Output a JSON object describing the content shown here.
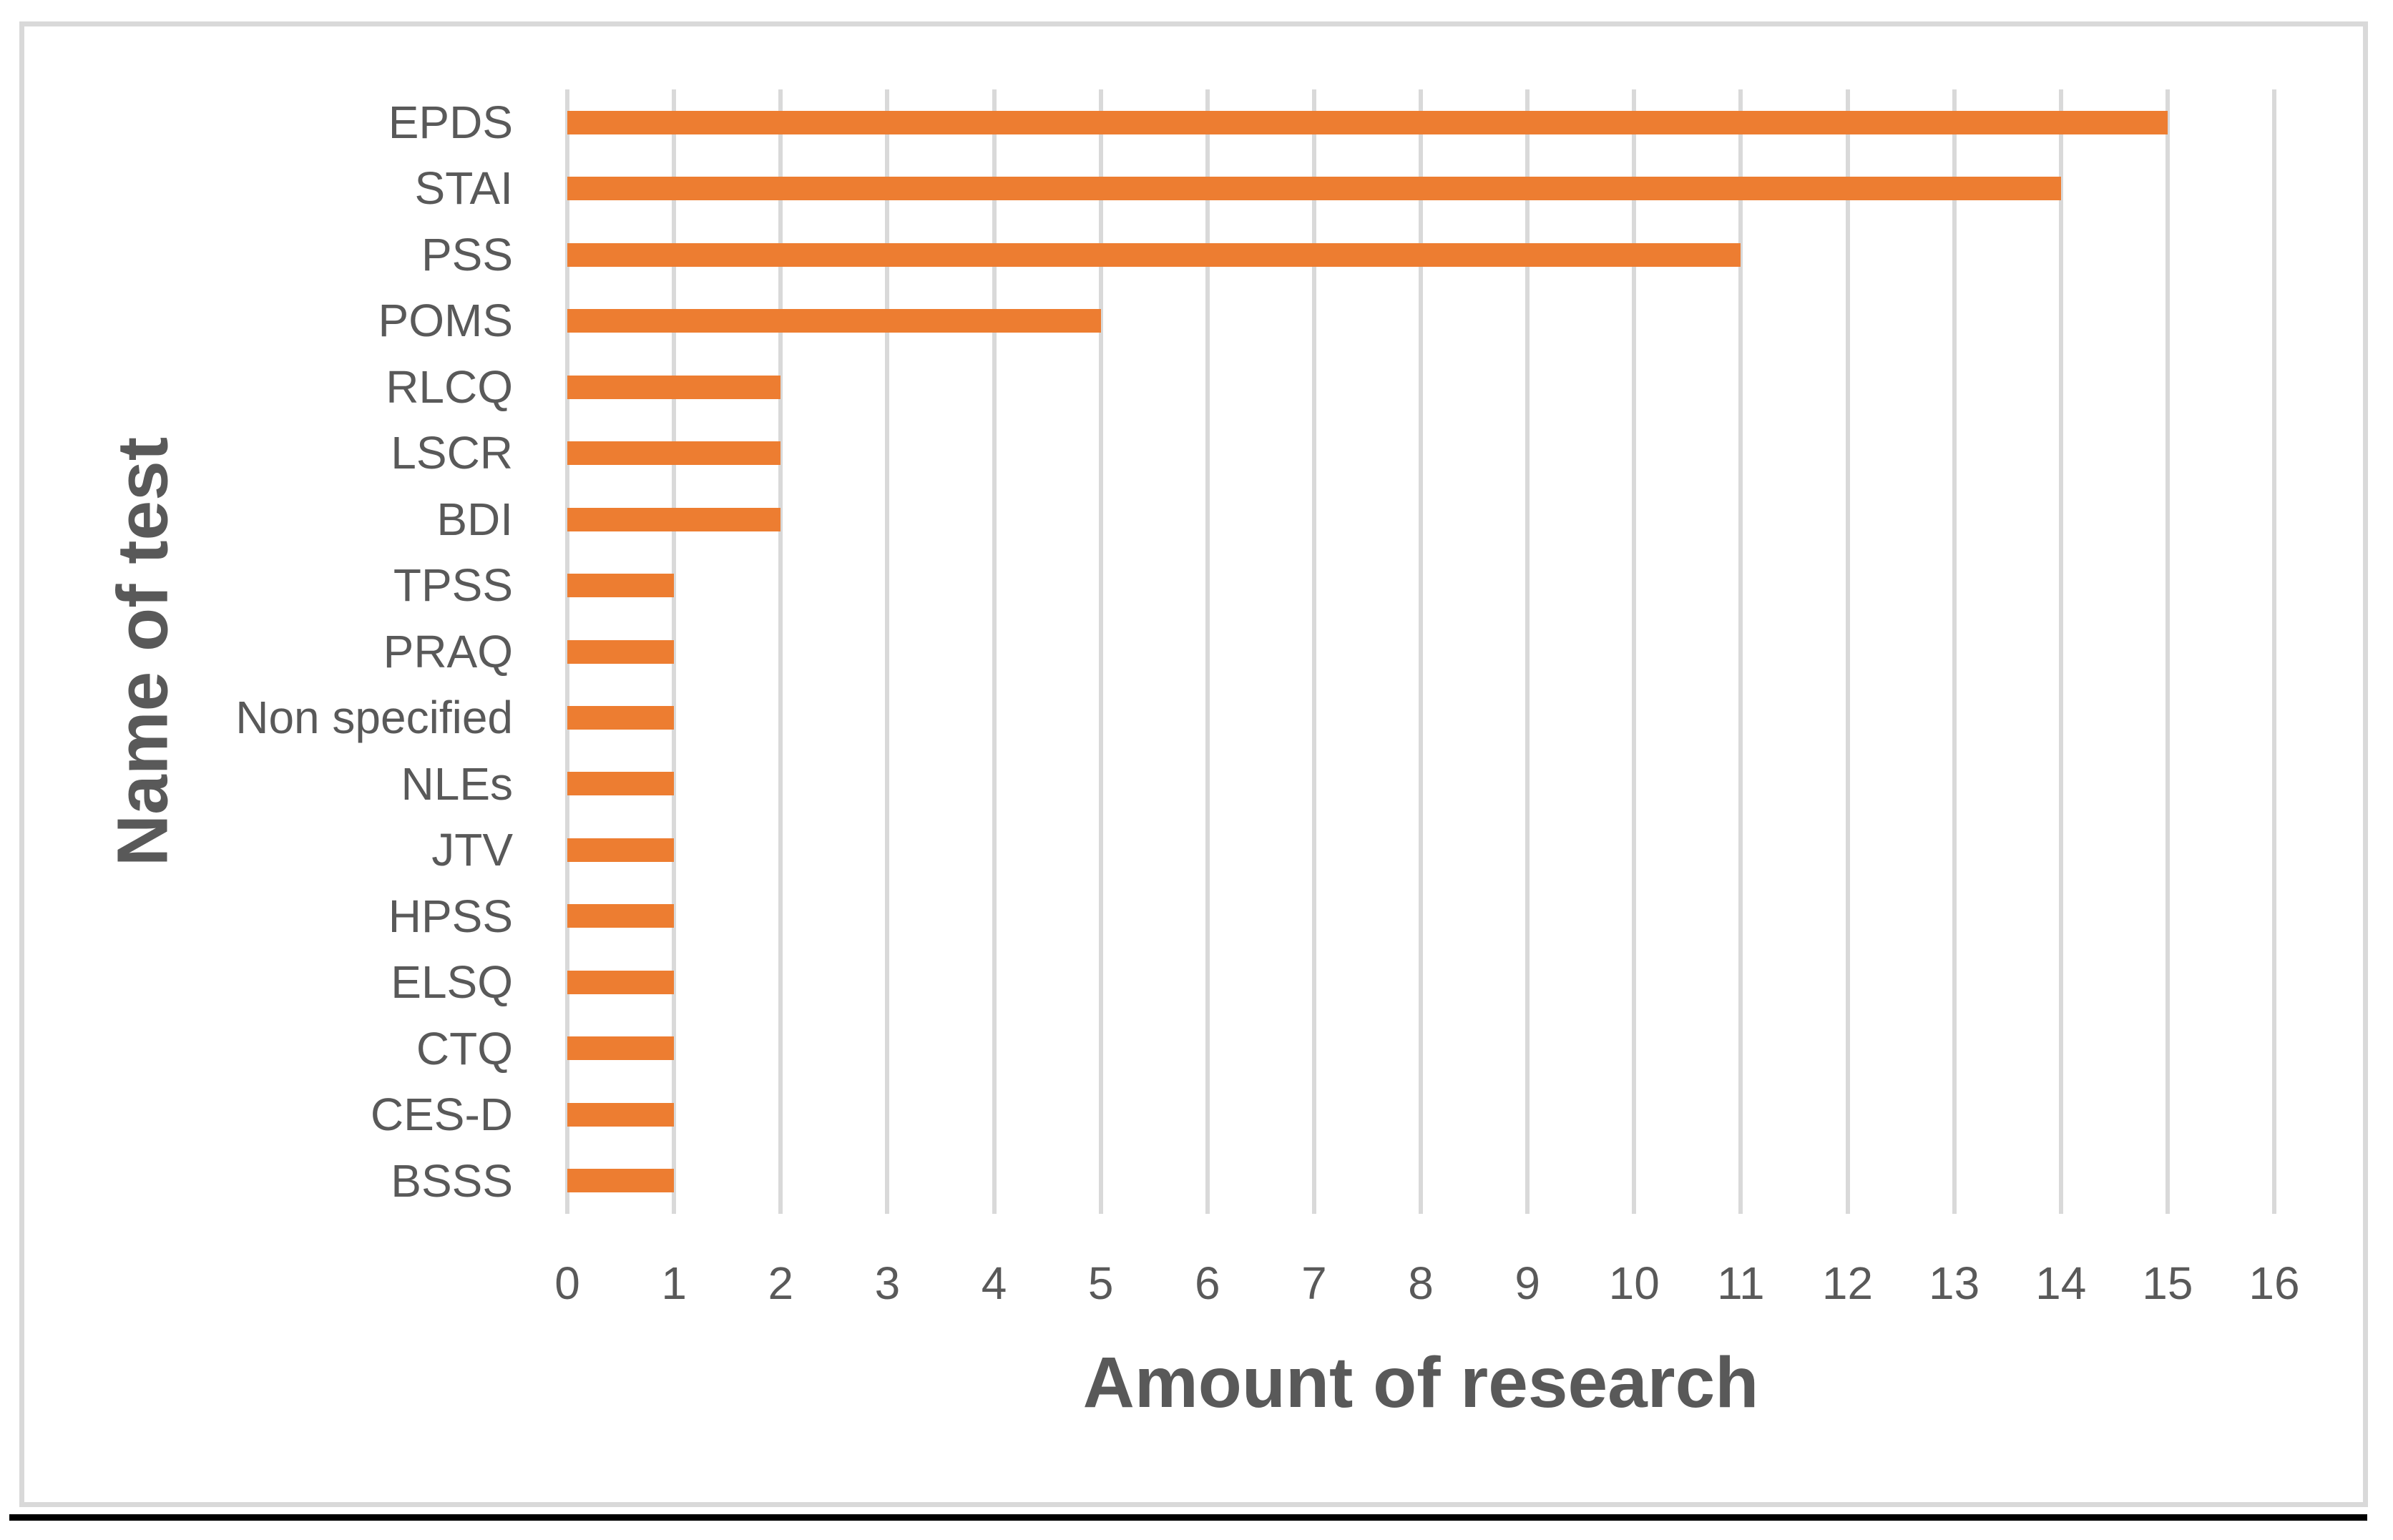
{
  "figure": {
    "background": "#ffffff",
    "frame_border_color": "#d9d9d9",
    "bottom_rule_color": "#000000"
  },
  "chart_data": {
    "type": "bar",
    "orientation": "horizontal",
    "title": "",
    "xlabel": "Amount of research",
    "ylabel": "Name of test",
    "categories": [
      "EPDS",
      "STAI",
      "PSS",
      "POMS",
      "RLCQ",
      "LSCR",
      "BDI",
      "TPSS",
      "PRAQ",
      "Non specified",
      "NLEs",
      "JTV",
      "HPSS",
      "ELSQ",
      "CTQ",
      "CES-D",
      "BSSS"
    ],
    "values": [
      15,
      14,
      11,
      5,
      2,
      2,
      2,
      1,
      1,
      1,
      1,
      1,
      1,
      1,
      1,
      1,
      1
    ],
    "xlim": [
      0,
      16
    ],
    "xticks": [
      0,
      1,
      2,
      3,
      4,
      5,
      6,
      7,
      8,
      9,
      10,
      11,
      12,
      13,
      14,
      15,
      16
    ],
    "grid": true,
    "legend": false,
    "bar_color": "#ED7D31",
    "gridline_color": "#D9D9D9",
    "text_color": "#595959",
    "axis_title_color": "#595959"
  }
}
